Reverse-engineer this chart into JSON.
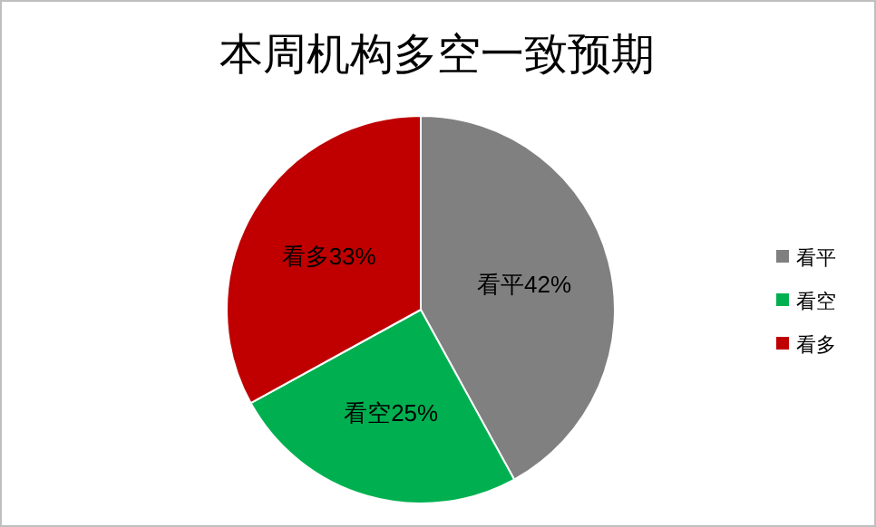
{
  "chart_data": {
    "type": "pie",
    "title": "本周机构多空一致预期",
    "categories": [
      "看平",
      "看空",
      "看多"
    ],
    "values": [
      42,
      25,
      33
    ],
    "colors": [
      "#808080",
      "#00b050",
      "#c00000"
    ],
    "value_labels": [
      "看平42%",
      "看空25%",
      "看多33%"
    ],
    "legend": "right"
  }
}
